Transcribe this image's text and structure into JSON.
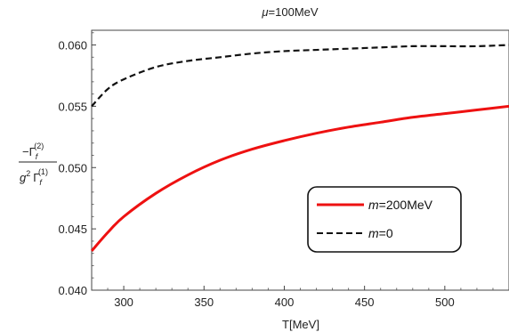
{
  "chart_data": {
    "type": "line",
    "title_mu": "μ",
    "title_rest": "=100MeV",
    "xlabel": "T[MeV]",
    "ylabel": {
      "numerator_prefix": "−Γ",
      "numerator_sub": "f",
      "numerator_sup": "(2)",
      "denominator_g": "g",
      "denominator_g_sup": "2",
      "denominator_gamma": "Γ",
      "denominator_sub": "f",
      "denominator_sup": "(1)"
    },
    "xlim": [
      280,
      540
    ],
    "ylim": [
      0.04,
      0.0612
    ],
    "xticks": [
      300,
      350,
      400,
      450,
      500
    ],
    "yticks": [
      0.04,
      0.045,
      0.05,
      0.055,
      0.06
    ],
    "ytick_labels": [
      "0.040",
      "0.045",
      "0.050",
      "0.055",
      "0.060"
    ],
    "grid": false,
    "legend_position": "center-right",
    "series": [
      {
        "name_var": "m",
        "name_rest": "=200MeV",
        "color": "#ee1111",
        "style": "solid",
        "x": [
          280,
          290,
          300,
          320,
          340,
          360,
          380,
          400,
          420,
          440,
          460,
          480,
          500,
          520,
          540
        ],
        "y": [
          0.0432,
          0.0447,
          0.046,
          0.0479,
          0.0494,
          0.0506,
          0.0515,
          0.0522,
          0.0528,
          0.0533,
          0.0537,
          0.0541,
          0.0544,
          0.0547,
          0.055
        ]
      },
      {
        "name_var": "m",
        "name_rest": "=0",
        "color": "#111111",
        "style": "dashed",
        "x": [
          280,
          290,
          300,
          320,
          340,
          360,
          380,
          400,
          420,
          440,
          460,
          480,
          500,
          520,
          540
        ],
        "y": [
          0.055,
          0.0564,
          0.0572,
          0.0582,
          0.0587,
          0.059,
          0.0593,
          0.0595,
          0.0596,
          0.0597,
          0.0598,
          0.0599,
          0.0599,
          0.0599,
          0.06
        ]
      }
    ]
  }
}
